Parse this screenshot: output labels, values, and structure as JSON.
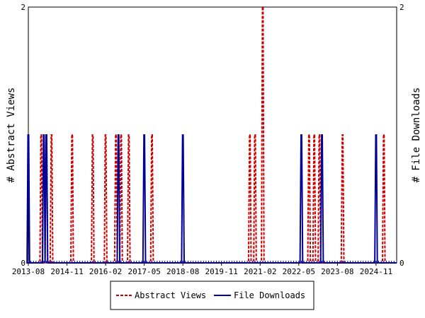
{
  "chart_data": {
    "type": "line",
    "title": "",
    "xlabel": "",
    "ylabel_left": "# Abstract Views",
    "ylabel_right": "# File Downloads",
    "ylim_left": [
      0,
      2
    ],
    "ylim_right": [
      0,
      2
    ],
    "y_ticks_left": [
      "0",
      "2"
    ],
    "y_ticks_right": [
      "0",
      "2"
    ],
    "x_range": [
      "2013-08",
      "2025-07"
    ],
    "x_tick_labels": [
      "2013-08",
      "2014-11",
      "2016-02",
      "2017-05",
      "2018-08",
      "2019-11",
      "2021-02",
      "2022-05",
      "2023-08",
      "2024-11"
    ],
    "grid": false,
    "legend_position": "bottom",
    "legend_labels": [
      "Abstract Views",
      "File Downloads"
    ],
    "series": [
      {
        "name": "Abstract Views",
        "color": "#cc0000",
        "style": "dashed",
        "axis": "left",
        "points": [
          [
            "2014-01",
            1
          ],
          [
            "2014-03",
            1
          ],
          [
            "2014-05",
            1
          ],
          [
            "2015-01",
            1
          ],
          [
            "2015-09",
            1
          ],
          [
            "2016-02",
            1
          ],
          [
            "2016-06",
            1
          ],
          [
            "2016-08",
            1
          ],
          [
            "2016-11",
            1
          ],
          [
            "2017-08",
            1
          ],
          [
            "2020-10",
            1
          ],
          [
            "2020-12",
            1
          ],
          [
            "2021-03",
            2
          ],
          [
            "2022-09",
            1
          ],
          [
            "2022-11",
            1
          ],
          [
            "2023-01",
            1
          ],
          [
            "2023-10",
            1
          ],
          [
            "2025-02",
            1
          ]
        ]
      },
      {
        "name": "File Downloads",
        "color": "#000099",
        "style": "solid",
        "axis": "right",
        "points": [
          [
            "2013-08",
            1
          ],
          [
            "2014-02",
            1
          ],
          [
            "2014-03",
            1
          ],
          [
            "2016-07",
            1
          ],
          [
            "2017-05",
            1
          ],
          [
            "2018-08",
            1
          ],
          [
            "2022-06",
            1
          ],
          [
            "2023-02",
            1
          ],
          [
            "2024-11",
            1
          ]
        ]
      }
    ]
  }
}
